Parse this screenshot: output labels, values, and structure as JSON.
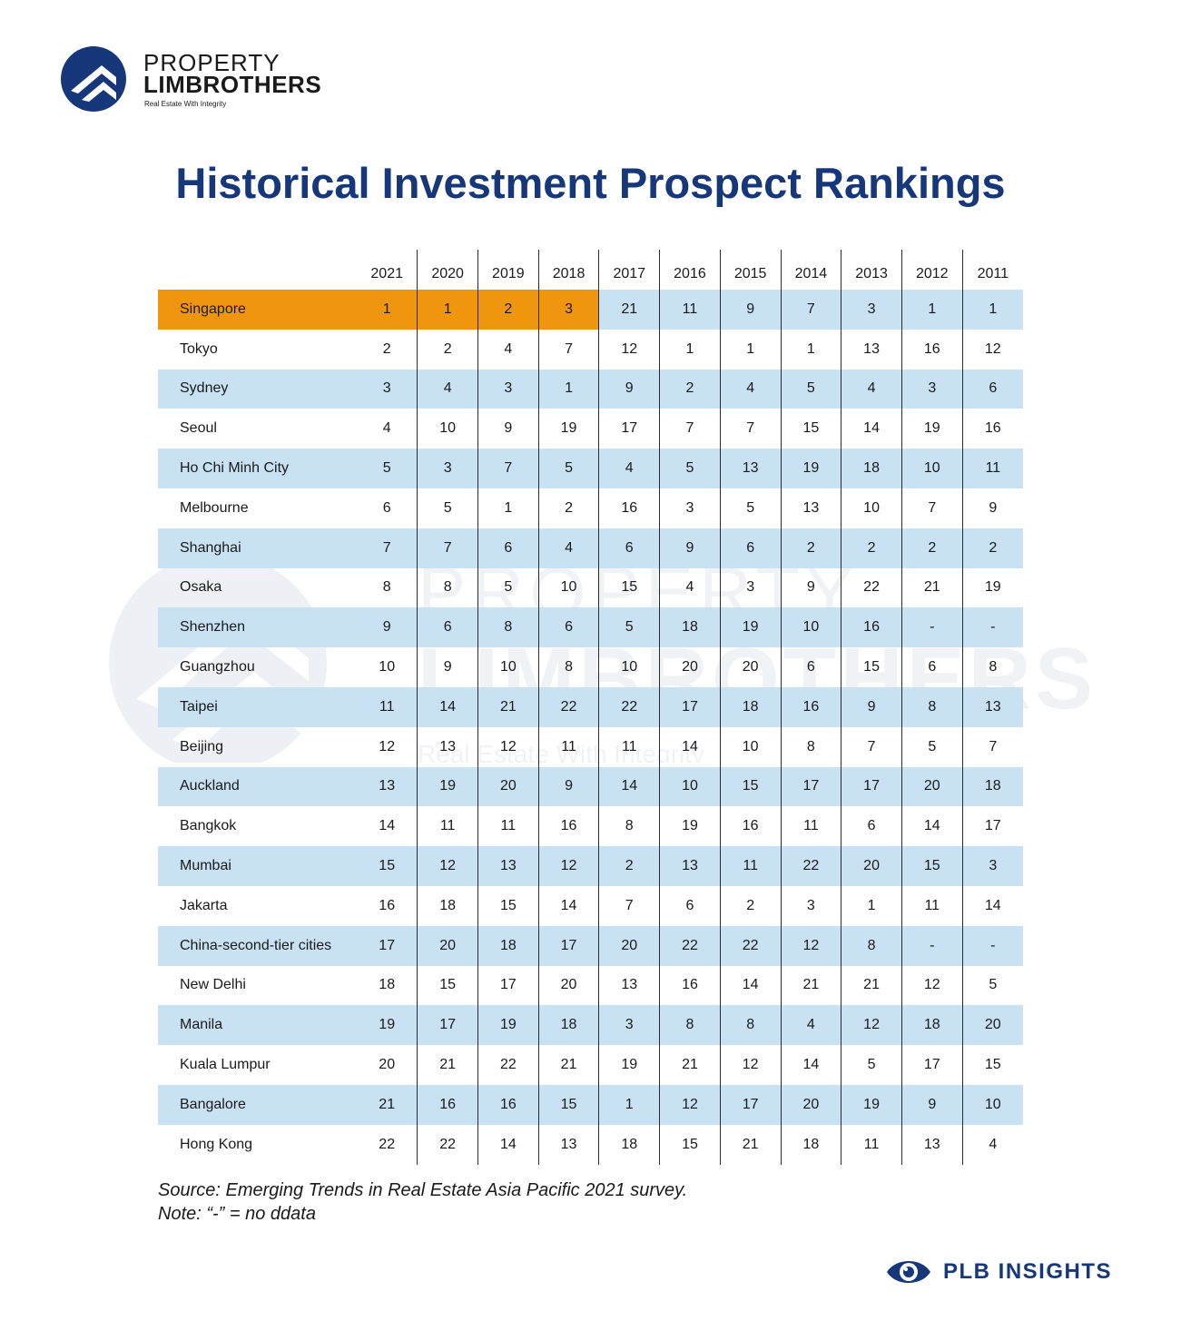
{
  "brand": {
    "line1": "PROPERTY",
    "line2": "LIMBROTHERS",
    "tagline": "Real Estate With Integrity",
    "color": "#16377a"
  },
  "title": "Historical Investment Prospect Rankings",
  "chart_data": {
    "type": "table",
    "columns": [
      "",
      "2021",
      "2020",
      "2019",
      "2018",
      "2017",
      "2016",
      "2015",
      "2014",
      "2013",
      "2012",
      "2011"
    ],
    "rows": [
      {
        "city": "Singapore",
        "values": [
          "1",
          "1",
          "2",
          "3",
          "21",
          "11",
          "9",
          "7",
          "3",
          "1",
          "1"
        ],
        "highlight_count": 4
      },
      {
        "city": "Tokyo",
        "values": [
          "2",
          "2",
          "4",
          "7",
          "12",
          "1",
          "1",
          "1",
          "13",
          "16",
          "12"
        ]
      },
      {
        "city": "Sydney",
        "values": [
          "3",
          "4",
          "3",
          "1",
          "9",
          "2",
          "4",
          "5",
          "4",
          "3",
          "6"
        ]
      },
      {
        "city": "Seoul",
        "values": [
          "4",
          "10",
          "9",
          "19",
          "17",
          "7",
          "7",
          "15",
          "14",
          "19",
          "16"
        ]
      },
      {
        "city": "Ho Chi Minh City",
        "values": [
          "5",
          "3",
          "7",
          "5",
          "4",
          "5",
          "13",
          "19",
          "18",
          "10",
          "11"
        ]
      },
      {
        "city": "Melbourne",
        "values": [
          "6",
          "5",
          "1",
          "2",
          "16",
          "3",
          "5",
          "13",
          "10",
          "7",
          "9"
        ]
      },
      {
        "city": "Shanghai",
        "values": [
          "7",
          "7",
          "6",
          "4",
          "6",
          "9",
          "6",
          "2",
          "2",
          "2",
          "2"
        ]
      },
      {
        "city": "Osaka",
        "values": [
          "8",
          "8",
          "5",
          "10",
          "15",
          "4",
          "3",
          "9",
          "22",
          "21",
          "19"
        ]
      },
      {
        "city": "Shenzhen",
        "values": [
          "9",
          "6",
          "8",
          "6",
          "5",
          "18",
          "19",
          "10",
          "16",
          "-",
          "-"
        ]
      },
      {
        "city": "Guangzhou",
        "values": [
          "10",
          "9",
          "10",
          "8",
          "10",
          "20",
          "20",
          "6",
          "15",
          "6",
          "8"
        ]
      },
      {
        "city": "Taipei",
        "values": [
          "11",
          "14",
          "21",
          "22",
          "22",
          "17",
          "18",
          "16",
          "9",
          "8",
          "13"
        ]
      },
      {
        "city": "Beijing",
        "values": [
          "12",
          "13",
          "12",
          "11",
          "11",
          "14",
          "10",
          "8",
          "7",
          "5",
          "7"
        ]
      },
      {
        "city": "Auckland",
        "values": [
          "13",
          "19",
          "20",
          "9",
          "14",
          "10",
          "15",
          "17",
          "17",
          "20",
          "18"
        ]
      },
      {
        "city": "Bangkok",
        "values": [
          "14",
          "11",
          "11",
          "16",
          "8",
          "19",
          "16",
          "11",
          "6",
          "14",
          "17"
        ]
      },
      {
        "city": "Mumbai",
        "values": [
          "15",
          "12",
          "13",
          "12",
          "2",
          "13",
          "11",
          "22",
          "20",
          "15",
          "3"
        ]
      },
      {
        "city": "Jakarta",
        "values": [
          "16",
          "18",
          "15",
          "14",
          "7",
          "6",
          "2",
          "3",
          "1",
          "11",
          "14"
        ]
      },
      {
        "city": "China-second-tier cities",
        "values": [
          "17",
          "20",
          "18",
          "17",
          "20",
          "22",
          "22",
          "12",
          "8",
          "-",
          "-"
        ]
      },
      {
        "city": "New Delhi",
        "values": [
          "18",
          "15",
          "17",
          "20",
          "13",
          "16",
          "14",
          "21",
          "21",
          "12",
          "5"
        ]
      },
      {
        "city": "Manila",
        "values": [
          "19",
          "17",
          "19",
          "18",
          "3",
          "8",
          "8",
          "4",
          "12",
          "18",
          "20"
        ]
      },
      {
        "city": "Kuala Lumpur",
        "values": [
          "20",
          "21",
          "22",
          "21",
          "19",
          "21",
          "12",
          "14",
          "5",
          "17",
          "15"
        ]
      },
      {
        "city": "Bangalore",
        "values": [
          "21",
          "16",
          "16",
          "15",
          "1",
          "12",
          "17",
          "20",
          "19",
          "9",
          "10"
        ]
      },
      {
        "city": "Hong Kong",
        "values": [
          "22",
          "22",
          "14",
          "13",
          "18",
          "15",
          "21",
          "18",
          "11",
          "13",
          "4"
        ]
      }
    ],
    "colors": {
      "highlight": "#f0950e",
      "stripe": "#c8e1f3"
    }
  },
  "source": {
    "line1": "Source: Emerging Trends in Real Estate Asia Pacific 2021 survey.",
    "line2": "Note: “-” = no ddata"
  },
  "footer_brand": "PLB INSIGHTS"
}
